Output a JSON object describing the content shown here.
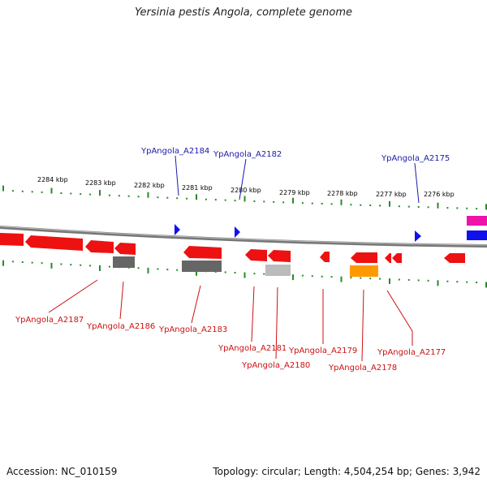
{
  "title": "Yersinia pestis Angola, complete genome",
  "footer": {
    "accession": "Accession: NC_010159",
    "summary": "Topology: circular; Length: 4,504,254 bp; Genes: 3,942"
  },
  "colors": {
    "forward_label": "#1a1aaa",
    "reverse_label": "#cc1111",
    "tick": "#2a8a2a",
    "backbone": "#888888",
    "gene_red": "#ee1111",
    "gene_gray": "#666666",
    "gene_lightgray": "#bbbbbb",
    "gene_orange": "#ff9900",
    "gene_blue": "#1111ee",
    "gene_pink": "#ee11aa"
  },
  "scale_labels": [
    "2284 kbp",
    "2283 kbp",
    "2282 kbp",
    "2281 kbp",
    "2280 kbp",
    "2279 kbp",
    "2278 kbp",
    "2277 kbp",
    "2276 kbp"
  ],
  "forward_genes": [
    "YpAngola_A2184",
    "YpAngola_A2182",
    "YpAngola_A2175"
  ],
  "reverse_genes": [
    "YpAngola_A2187",
    "YpAngola_A2186",
    "YpAngola_A2183",
    "YpAngola_A2181",
    "YpAngola_A2180",
    "YpAngola_A2179",
    "YpAngola_A2178",
    "YpAngola_A2177"
  ]
}
